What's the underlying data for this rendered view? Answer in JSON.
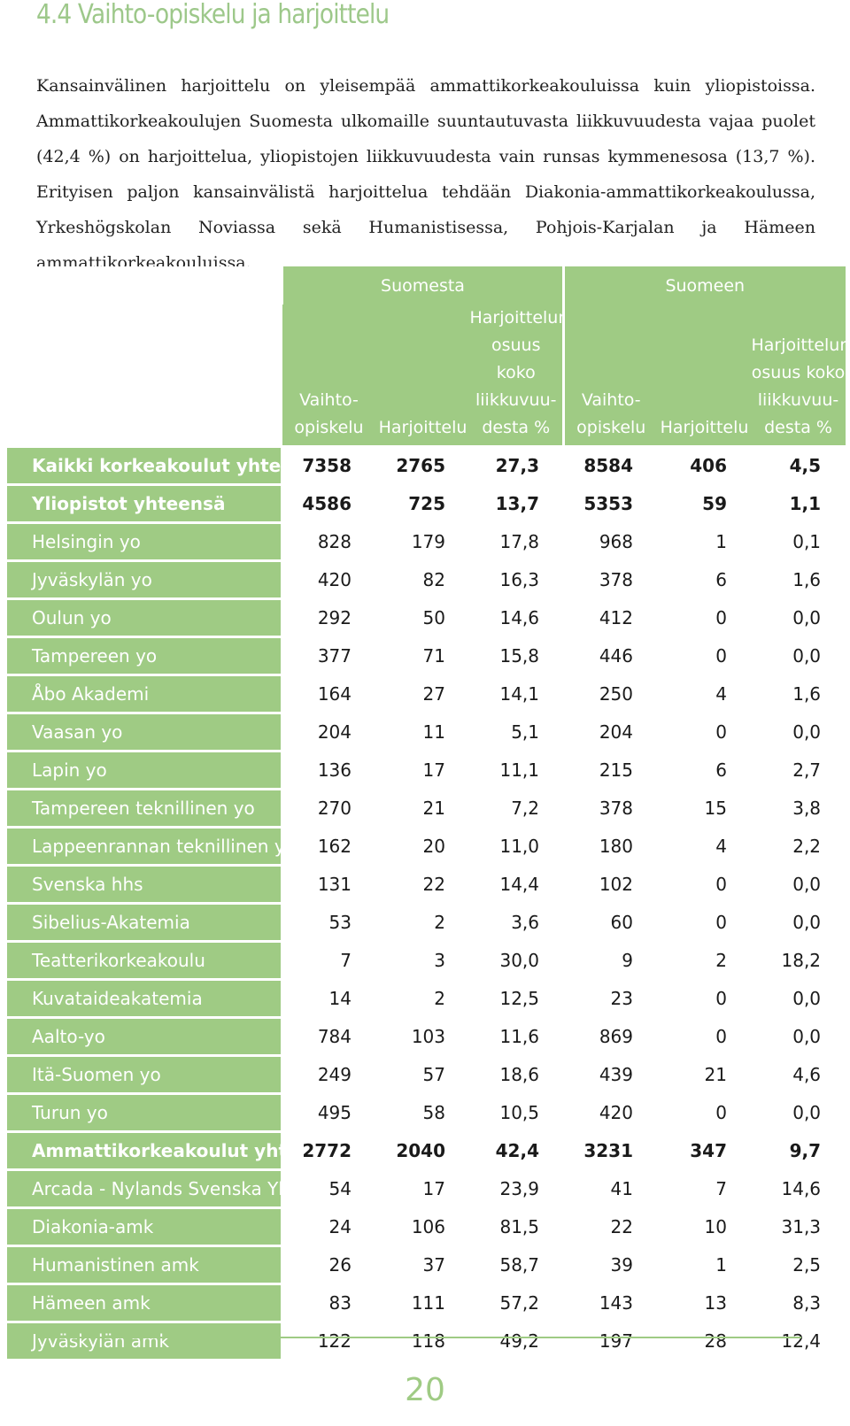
{
  "heading": "4.4 Vaihto-opiskelu ja harjoittelu",
  "intro": "Kansainvälinen harjoittelu on yleisempää ammattikorkeakouluissa kuin yliopistoissa. Ammattikorkeakoulujen Suomesta ulkomaille suuntautuvasta liikkuvuudesta vajaa puolet (42,4 %) on harjoittelua, yliopistojen liikkuvuudesta vain runsas kymmenesosa (13,7 %). Erityisen paljon kansainvälistä harjoittelua tehdään Diakonia-ammattikorkeakoulussa, Yrkeshögskolan Noviassa sekä Humanistisessa, Pohjois-Karjalan ja Hämeen ammattikorkeakouluissa.",
  "table": {
    "group_a": "Suomesta",
    "group_b": "Suomeen",
    "col_exchange": "Vaihto-opiskelu",
    "col_training": "Harjoittelu",
    "col_share": "Harjoittelun osuus koko liikkuvuu-desta %",
    "rows": [
      {
        "name": "Kaikki korkeakoulut yhteensä",
        "a1": "7358",
        "a2": "2765",
        "a3": "27,3",
        "b1": "8584",
        "b2": "406",
        "b3": "4,5",
        "total": true
      },
      {
        "name": "Yliopistot yhteensä",
        "a1": "4586",
        "a2": "725",
        "a3": "13,7",
        "b1": "5353",
        "b2": "59",
        "b3": "1,1",
        "total": true
      },
      {
        "name": "Helsingin yo",
        "a1": "828",
        "a2": "179",
        "a3": "17,8",
        "b1": "968",
        "b2": "1",
        "b3": "0,1"
      },
      {
        "name": "Jyväskylän yo",
        "a1": "420",
        "a2": "82",
        "a3": "16,3",
        "b1": "378",
        "b2": "6",
        "b3": "1,6"
      },
      {
        "name": "Oulun yo",
        "a1": "292",
        "a2": "50",
        "a3": "14,6",
        "b1": "412",
        "b2": "0",
        "b3": "0,0"
      },
      {
        "name": "Tampereen yo",
        "a1": "377",
        "a2": "71",
        "a3": "15,8",
        "b1": "446",
        "b2": "0",
        "b3": "0,0"
      },
      {
        "name": "Åbo Akademi",
        "a1": "164",
        "a2": "27",
        "a3": "14,1",
        "b1": "250",
        "b2": "4",
        "b3": "1,6"
      },
      {
        "name": "Vaasan yo",
        "a1": "204",
        "a2": "11",
        "a3": "5,1",
        "b1": "204",
        "b2": "0",
        "b3": "0,0"
      },
      {
        "name": "Lapin yo",
        "a1": "136",
        "a2": "17",
        "a3": "11,1",
        "b1": "215",
        "b2": "6",
        "b3": "2,7"
      },
      {
        "name": "Tampereen teknillinen yo",
        "a1": "270",
        "a2": "21",
        "a3": "7,2",
        "b1": "378",
        "b2": "15",
        "b3": "3,8"
      },
      {
        "name": "Lappeenrannan teknillinen yo",
        "a1": "162",
        "a2": "20",
        "a3": "11,0",
        "b1": "180",
        "b2": "4",
        "b3": "2,2"
      },
      {
        "name": "Svenska hhs",
        "a1": "131",
        "a2": "22",
        "a3": "14,4",
        "b1": "102",
        "b2": "0",
        "b3": "0,0"
      },
      {
        "name": "Sibelius-Akatemia",
        "a1": "53",
        "a2": "2",
        "a3": "3,6",
        "b1": "60",
        "b2": "0",
        "b3": "0,0"
      },
      {
        "name": "Teatterikorkeakoulu",
        "a1": "7",
        "a2": "3",
        "a3": "30,0",
        "b1": "9",
        "b2": "2",
        "b3": "18,2"
      },
      {
        "name": "Kuvataideakatemia",
        "a1": "14",
        "a2": "2",
        "a3": "12,5",
        "b1": "23",
        "b2": "0",
        "b3": "0,0"
      },
      {
        "name": "Aalto-yo",
        "a1": "784",
        "a2": "103",
        "a3": "11,6",
        "b1": "869",
        "b2": "0",
        "b3": "0,0"
      },
      {
        "name": "Itä-Suomen yo",
        "a1": "249",
        "a2": "57",
        "a3": "18,6",
        "b1": "439",
        "b2": "21",
        "b3": "4,6"
      },
      {
        "name": "Turun yo",
        "a1": "495",
        "a2": "58",
        "a3": "10,5",
        "b1": "420",
        "b2": "0",
        "b3": "0,0"
      },
      {
        "name": "Ammattikorkeakoulut yhteensä",
        "a1": "2772",
        "a2": "2040",
        "a3": "42,4",
        "b1": "3231",
        "b2": "347",
        "b3": "9,7",
        "total": true
      },
      {
        "name": "Arcada - Nylands Svenska Yhs",
        "a1": "54",
        "a2": "17",
        "a3": "23,9",
        "b1": "41",
        "b2": "7",
        "b3": "14,6"
      },
      {
        "name": "Diakonia-amk",
        "a1": "24",
        "a2": "106",
        "a3": "81,5",
        "b1": "22",
        "b2": "10",
        "b3": "31,3"
      },
      {
        "name": "Humanistinen amk",
        "a1": "26",
        "a2": "37",
        "a3": "58,7",
        "b1": "39",
        "b2": "1",
        "b3": "2,5"
      },
      {
        "name": "Hämeen amk",
        "a1": "83",
        "a2": "111",
        "a3": "57,2",
        "b1": "143",
        "b2": "13",
        "b3": "8,3"
      },
      {
        "name": "Jyväskylän amk",
        "a1": "122",
        "a2": "118",
        "a3": "49,2",
        "b1": "197",
        "b2": "28",
        "b3": "12,4"
      }
    ]
  },
  "page_number": "20",
  "colors": {
    "accent": "#9fcb84",
    "text": "#222222",
    "white": "#ffffff"
  }
}
